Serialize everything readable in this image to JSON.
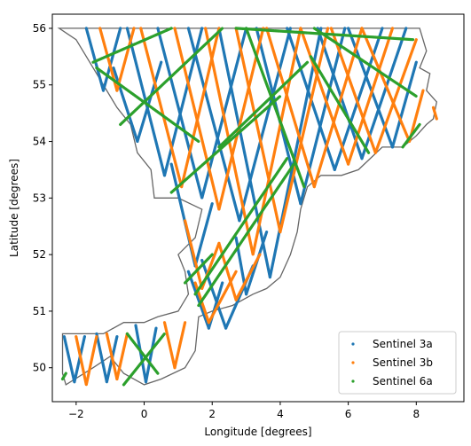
{
  "chart_data": {
    "type": "scatter",
    "title": "",
    "xlabel": "Longitude [degrees]",
    "ylabel": "Latitude [degrees]",
    "xlim": [
      -2.7,
      9.4
    ],
    "ylim": [
      49.4,
      56.25
    ],
    "xticks": [
      -2,
      0,
      2,
      4,
      6,
      8
    ],
    "yticks": [
      50,
      51,
      52,
      53,
      54,
      55,
      56
    ],
    "grid": false,
    "legend_position": "lower-right",
    "coastline": {
      "color": "#666666",
      "points": [
        [
          -2.5,
          56.0
        ],
        [
          8.1,
          56.0
        ],
        [
          8.3,
          55.6
        ],
        [
          8.1,
          55.3
        ],
        [
          8.4,
          55.2
        ],
        [
          8.3,
          54.9
        ],
        [
          8.6,
          54.7
        ],
        [
          8.5,
          54.4
        ],
        [
          8.3,
          54.3
        ],
        [
          8.0,
          54.1
        ],
        [
          7.6,
          53.9
        ],
        [
          7.0,
          53.9
        ],
        [
          6.3,
          53.5
        ],
        [
          5.8,
          53.4
        ],
        [
          5.2,
          53.4
        ],
        [
          4.8,
          53.2
        ],
        [
          4.6,
          52.8
        ],
        [
          4.5,
          52.4
        ],
        [
          4.3,
          52.0
        ],
        [
          4.0,
          51.6
        ],
        [
          3.6,
          51.4
        ],
        [
          3.2,
          51.3
        ],
        [
          2.6,
          51.1
        ],
        [
          2.0,
          51.0
        ],
        [
          1.6,
          50.9
        ],
        [
          1.5,
          50.3
        ],
        [
          1.2,
          50.0
        ],
        [
          0.5,
          49.8
        ],
        [
          0.0,
          49.7
        ],
        [
          -0.6,
          49.9
        ],
        [
          -1.0,
          50.2
        ],
        [
          -1.5,
          50.0
        ],
        [
          -2.3,
          49.7
        ],
        [
          -2.4,
          49.9
        ],
        [
          -2.4,
          50.6
        ],
        [
          -1.2,
          50.6
        ],
        [
          -0.6,
          50.8
        ],
        [
          0.0,
          50.8
        ],
        [
          0.4,
          50.9
        ],
        [
          1.0,
          51.0
        ],
        [
          1.3,
          51.3
        ],
        [
          1.2,
          51.7
        ],
        [
          1.0,
          52.0
        ],
        [
          1.5,
          52.3
        ],
        [
          1.7,
          52.8
        ],
        [
          1.0,
          53.0
        ],
        [
          0.3,
          53.0
        ],
        [
          0.2,
          53.5
        ],
        [
          -0.2,
          53.8
        ],
        [
          -0.4,
          54.3
        ],
        [
          -0.8,
          54.6
        ],
        [
          -1.2,
          55.0
        ],
        [
          -1.6,
          55.4
        ],
        [
          -2.0,
          55.8
        ],
        [
          -2.5,
          56.0
        ]
      ]
    },
    "series": [
      {
        "name": "Sentinel 3a",
        "color": "#1f77b4",
        "segments": [
          [
            [
              -2.35,
              50.55
            ],
            [
              -2.05,
              49.75
            ]
          ],
          [
            [
              -1.75,
              50.55
            ],
            [
              -2.05,
              49.75
            ]
          ],
          [
            [
              -1.4,
              50.6
            ],
            [
              -1.1,
              49.75
            ]
          ],
          [
            [
              -0.8,
              50.55
            ],
            [
              -1.1,
              49.75
            ]
          ],
          [
            [
              -0.25,
              50.75
            ],
            [
              0.05,
              49.75
            ]
          ],
          [
            [
              0.35,
              50.7
            ],
            [
              0.05,
              49.75
            ]
          ],
          [
            [
              -1.7,
              56.0
            ],
            [
              -1.2,
              54.9
            ]
          ],
          [
            [
              -0.7,
              56.0
            ],
            [
              -1.2,
              54.9
            ]
          ],
          [
            [
              -0.5,
              56.0
            ],
            [
              0.6,
              53.4
            ]
          ],
          [
            [
              1.7,
              56.0
            ],
            [
              0.6,
              53.4
            ]
          ],
          [
            [
              0.4,
              56.0
            ],
            [
              1.7,
              53.0
            ]
          ],
          [
            [
              3.0,
              56.0
            ],
            [
              1.7,
              53.0
            ]
          ],
          [
            [
              1.3,
              56.0
            ],
            [
              2.8,
              52.6
            ]
          ],
          [
            [
              4.3,
              56.0
            ],
            [
              2.8,
              52.6
            ]
          ],
          [
            [
              2.2,
              56.0
            ],
            [
              3.7,
              51.6
            ]
          ],
          [
            [
              5.2,
              56.0
            ],
            [
              3.7,
              51.6
            ]
          ],
          [
            [
              3.3,
              56.0
            ],
            [
              4.6,
              52.9
            ]
          ],
          [
            [
              5.9,
              56.0
            ],
            [
              4.6,
              52.9
            ]
          ],
          [
            [
              4.2,
              56.0
            ],
            [
              5.6,
              53.5
            ]
          ],
          [
            [
              7.0,
              56.0
            ],
            [
              5.6,
              53.5
            ]
          ],
          [
            [
              5.1,
              56.0
            ],
            [
              6.4,
              53.7
            ]
          ],
          [
            [
              7.7,
              56.0
            ],
            [
              6.4,
              53.7
            ]
          ],
          [
            [
              6.0,
              56.0
            ],
            [
              7.3,
              53.9
            ]
          ],
          [
            [
              8.0,
              55.4
            ],
            [
              7.3,
              53.9
            ]
          ],
          [
            [
              0.8,
              53.6
            ],
            [
              1.5,
              51.8
            ]
          ],
          [
            [
              2.0,
              52.9
            ],
            [
              1.5,
              51.8
            ]
          ],
          [
            [
              1.7,
              51.9
            ],
            [
              2.4,
              50.7
            ]
          ],
          [
            [
              3.2,
              51.8
            ],
            [
              2.4,
              50.7
            ]
          ],
          [
            [
              2.7,
              52.3
            ],
            [
              3.0,
              51.3
            ]
          ],
          [
            [
              3.6,
              52.4
            ],
            [
              3.0,
              51.3
            ]
          ],
          [
            [
              1.3,
              51.7
            ],
            [
              1.9,
              50.7
            ]
          ],
          [
            [
              2.3,
              51.5
            ],
            [
              1.9,
              50.7
            ]
          ],
          [
            [
              -0.9,
              55.3
            ],
            [
              -0.2,
              54.0
            ]
          ],
          [
            [
              0.5,
              55.4
            ],
            [
              -0.2,
              54.0
            ]
          ]
        ]
      },
      {
        "name": "Sentinel 3b",
        "color": "#ff7f0e",
        "segments": [
          [
            [
              -2.0,
              50.55
            ],
            [
              -1.7,
              49.7
            ]
          ],
          [
            [
              -1.4,
              50.55
            ],
            [
              -1.7,
              49.7
            ]
          ],
          [
            [
              -1.1,
              50.6
            ],
            [
              -0.8,
              49.8
            ]
          ],
          [
            [
              -0.5,
              50.6
            ],
            [
              -0.8,
              49.8
            ]
          ],
          [
            [
              0.6,
              50.8
            ],
            [
              0.9,
              50.0
            ]
          ],
          [
            [
              1.2,
              50.8
            ],
            [
              0.9,
              50.0
            ]
          ],
          [
            [
              -1.3,
              56.0
            ],
            [
              -0.8,
              54.9
            ]
          ],
          [
            [
              -0.3,
              56.0
            ],
            [
              -0.8,
              54.9
            ]
          ],
          [
            [
              -0.1,
              56.0
            ],
            [
              1.1,
              53.2
            ]
          ],
          [
            [
              2.2,
              56.0
            ],
            [
              1.1,
              53.2
            ]
          ],
          [
            [
              0.9,
              56.0
            ],
            [
              2.2,
              52.8
            ]
          ],
          [
            [
              3.5,
              56.0
            ],
            [
              2.2,
              52.8
            ]
          ],
          [
            [
              1.8,
              56.0
            ],
            [
              3.2,
              52.0
            ]
          ],
          [
            [
              4.6,
              56.0
            ],
            [
              3.2,
              52.0
            ]
          ],
          [
            [
              2.7,
              56.0
            ],
            [
              4.0,
              52.4
            ]
          ],
          [
            [
              5.4,
              56.0
            ],
            [
              4.0,
              52.4
            ]
          ],
          [
            [
              3.6,
              56.0
            ],
            [
              5.0,
              53.2
            ]
          ],
          [
            [
              6.4,
              56.0
            ],
            [
              5.0,
              53.2
            ]
          ],
          [
            [
              4.6,
              56.0
            ],
            [
              6.0,
              53.6
            ]
          ],
          [
            [
              7.3,
              56.0
            ],
            [
              6.0,
              53.6
            ]
          ],
          [
            [
              5.5,
              56.0
            ],
            [
              6.8,
              53.8
            ]
          ],
          [
            [
              8.0,
              55.8
            ],
            [
              6.8,
              53.8
            ]
          ],
          [
            [
              6.4,
              56.0
            ],
            [
              7.8,
              54.0
            ]
          ],
          [
            [
              8.2,
              54.9
            ],
            [
              7.8,
              54.0
            ]
          ],
          [
            [
              1.2,
              52.6
            ],
            [
              1.7,
              51.4
            ]
          ],
          [
            [
              2.2,
              52.2
            ],
            [
              1.7,
              51.4
            ]
          ],
          [
            [
              1.5,
              51.5
            ],
            [
              1.9,
              50.8
            ]
          ],
          [
            [
              2.7,
              51.7
            ],
            [
              1.9,
              50.8
            ]
          ],
          [
            [
              2.2,
              52.2
            ],
            [
              2.7,
              51.2
            ]
          ],
          [
            [
              3.4,
              52.0
            ],
            [
              2.7,
              51.2
            ]
          ],
          [
            [
              8.5,
              54.6
            ],
            [
              8.6,
              54.4
            ]
          ]
        ]
      },
      {
        "name": "Sentinel 6a",
        "color": "#2ca02c",
        "segments": [
          [
            [
              -0.6,
              49.7
            ],
            [
              0.6,
              50.6
            ]
          ],
          [
            [
              -0.5,
              50.6
            ],
            [
              0.4,
              49.9
            ]
          ],
          [
            [
              -1.5,
              55.4
            ],
            [
              0.8,
              56.0
            ]
          ],
          [
            [
              -0.7,
              54.3
            ],
            [
              2.3,
              56.0
            ]
          ],
          [
            [
              -1.4,
              55.3
            ],
            [
              1.6,
              54.0
            ]
          ],
          [
            [
              0.8,
              53.1
            ],
            [
              4.0,
              54.8
            ]
          ],
          [
            [
              1.5,
              51.3
            ],
            [
              4.2,
              53.7
            ]
          ],
          [
            [
              2.7,
              56.0
            ],
            [
              7.9,
              55.8
            ]
          ],
          [
            [
              2.2,
              53.9
            ],
            [
              4.8,
              55.4
            ]
          ],
          [
            [
              5.0,
              56.0
            ],
            [
              8.0,
              54.8
            ]
          ],
          [
            [
              4.9,
              55.5
            ],
            [
              6.6,
              53.8
            ]
          ],
          [
            [
              3.0,
              56.0
            ],
            [
              4.7,
              53.2
            ]
          ],
          [
            [
              1.6,
              51.1
            ],
            [
              4.4,
              53.6
            ]
          ],
          [
            [
              1.2,
              51.5
            ],
            [
              2.0,
              52.0
            ]
          ],
          [
            [
              7.6,
              53.9
            ],
            [
              8.1,
              54.3
            ]
          ],
          [
            [
              -2.4,
              49.8
            ],
            [
              -2.3,
              49.9
            ]
          ]
        ]
      }
    ]
  }
}
